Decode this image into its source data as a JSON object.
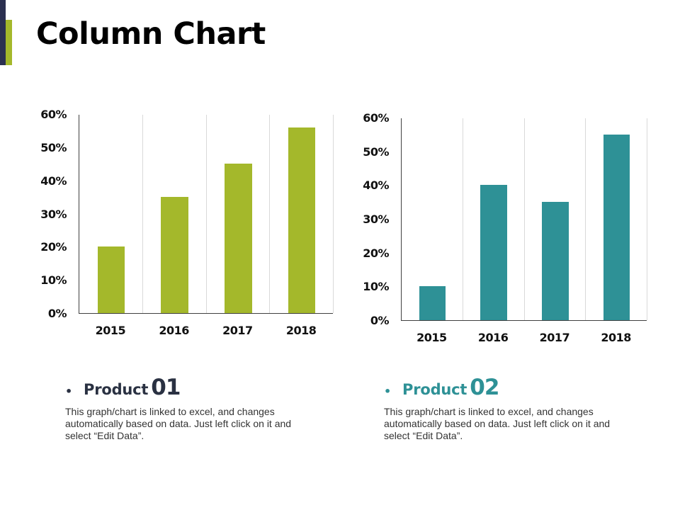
{
  "page": {
    "title": "Column Chart",
    "accent_colors": {
      "dark": "#2b3050",
      "green": "#a4b82b"
    }
  },
  "products": [
    {
      "bullet": "•",
      "label": "Product",
      "number": "01",
      "color": "#2a3142",
      "description": "This graph/chart is linked to excel, and changes automatically based on data. Just left click on it and select “Edit Data”."
    },
    {
      "bullet": "•",
      "label": "Product",
      "number": "02",
      "color": "#2e9196",
      "description": "This graph/chart is linked to excel, and changes automatically based on data. Just left click on it and select “Edit Data”."
    }
  ],
  "chart_data": [
    {
      "type": "bar",
      "title": "Product 01",
      "categories": [
        "2015",
        "2016",
        "2017",
        "2018"
      ],
      "values": [
        20,
        35,
        45,
        56
      ],
      "unit": "%",
      "xlabel": "",
      "ylabel": "",
      "ylim": [
        0,
        60
      ],
      "yticks": [
        "0%",
        "10%",
        "20%",
        "30%",
        "40%",
        "50%",
        "60%"
      ],
      "bar_color": "#a4b82b",
      "grid": "vertical separators",
      "legend": "none"
    },
    {
      "type": "bar",
      "title": "Product 02",
      "categories": [
        "2015",
        "2016",
        "2017",
        "2018"
      ],
      "values": [
        10,
        40,
        35,
        55
      ],
      "unit": "%",
      "xlabel": "",
      "ylabel": "",
      "ylim": [
        0,
        60
      ],
      "yticks": [
        "0%",
        "10%",
        "20%",
        "30%",
        "40%",
        "50%",
        "60%"
      ],
      "bar_color": "#2e9196",
      "grid": "vertical separators",
      "legend": "none"
    }
  ]
}
